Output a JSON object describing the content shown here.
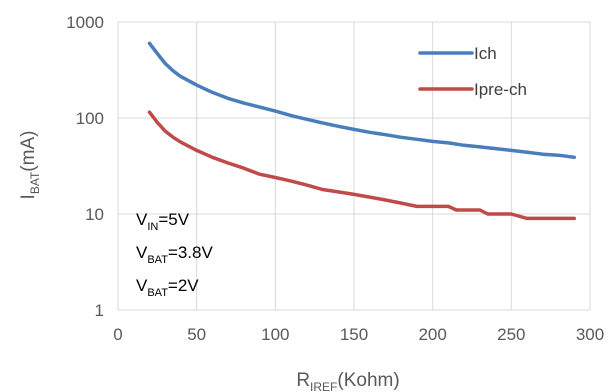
{
  "chart_data": {
    "type": "line",
    "title": "",
    "xlabel": {
      "main": "R",
      "sub": "IREF",
      "rest": "(Kohm)"
    },
    "ylabel": {
      "main": "I",
      "sub": "BAT",
      "rest": "(mA)"
    },
    "xlim": [
      0,
      300
    ],
    "ylim": [
      1,
      1000
    ],
    "yscale": "log",
    "x_ticks": [
      "0",
      "50",
      "100",
      "150",
      "200",
      "250",
      "300"
    ],
    "y_ticks": [
      "1",
      "10",
      "100",
      "1000"
    ],
    "grid": {
      "vertical": true,
      "horizontal": true
    },
    "legend_position": "top-right",
    "series": [
      {
        "name": "Ich",
        "color": "#4a7ebb",
        "x": [
          20,
          25,
          30,
          35,
          40,
          50,
          60,
          70,
          80,
          90,
          100,
          110,
          120,
          130,
          140,
          150,
          160,
          170,
          180,
          190,
          200,
          210,
          220,
          230,
          240,
          250,
          260,
          270,
          280,
          290
        ],
        "y": [
          600,
          470,
          370,
          310,
          270,
          220,
          185,
          160,
          143,
          130,
          118,
          106,
          97,
          89,
          82,
          76,
          71,
          67,
          63,
          60,
          57,
          55,
          52,
          50,
          48,
          46,
          44,
          42,
          41,
          39
        ]
      },
      {
        "name": "Ipre-ch",
        "color": "#be4b48",
        "x": [
          20,
          25,
          30,
          35,
          40,
          50,
          60,
          70,
          80,
          90,
          100,
          110,
          120,
          130,
          140,
          150,
          160,
          170,
          180,
          190,
          200,
          210,
          215,
          220,
          230,
          235,
          240,
          250,
          260,
          270,
          280,
          290
        ],
        "y": [
          115,
          90,
          73,
          63,
          56,
          46,
          39,
          34,
          30,
          26,
          24,
          22,
          20,
          18,
          17,
          16,
          15,
          14,
          13,
          12,
          12,
          12,
          11,
          11,
          11,
          10,
          10,
          10,
          9,
          9,
          9,
          9
        ]
      }
    ],
    "annotations": [
      {
        "main": "V",
        "sub": "IN",
        "rest": "=5V"
      },
      {
        "main": "V",
        "sub": "BAT",
        "rest": "=3.8V"
      },
      {
        "main": "V",
        "sub": "BAT",
        "rest": "=2V"
      }
    ]
  }
}
